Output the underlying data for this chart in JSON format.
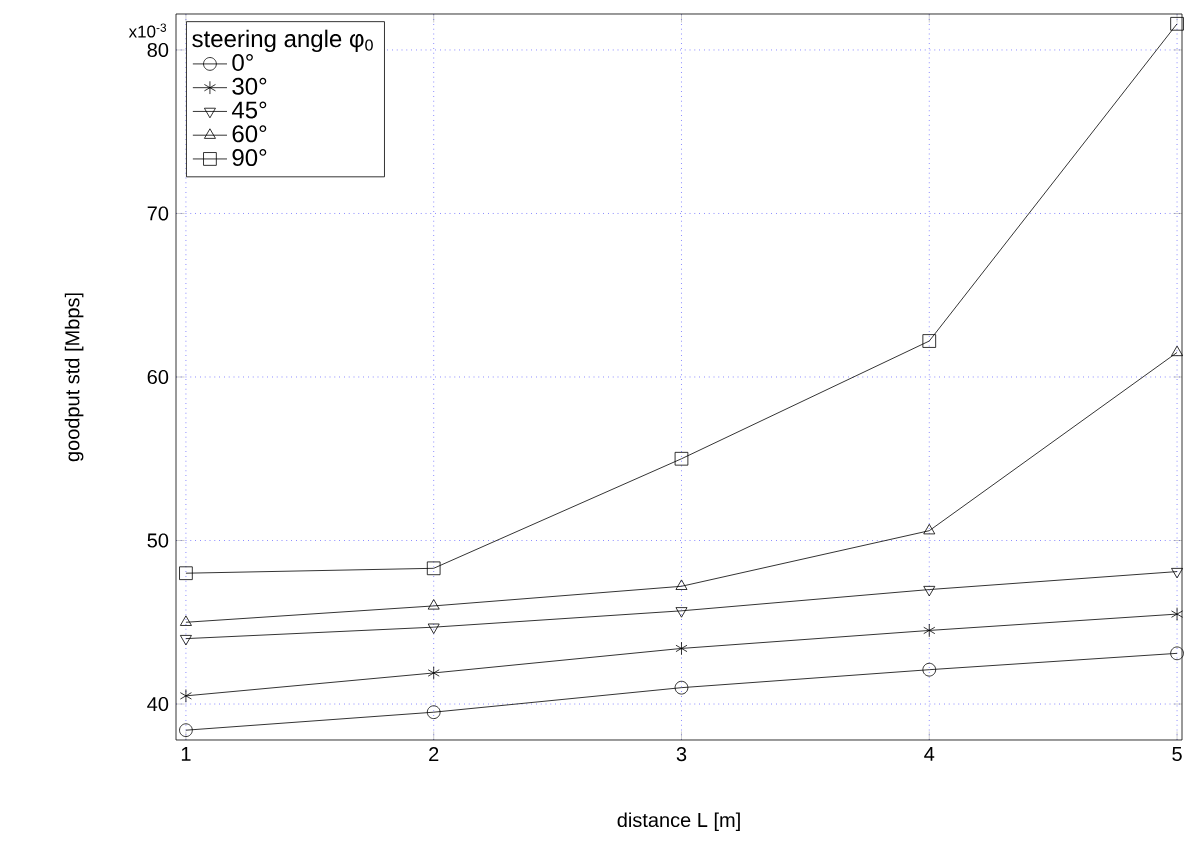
{
  "chart_data": {
    "type": "line",
    "xlabel": "distance L [m]",
    "ylabel": "goodput std [Mbps]",
    "legend_title": "steering angle φ$_{0}$",
    "annotations": [
      "x10$^{-3}$"
    ],
    "x": [
      1,
      2,
      3,
      4,
      5
    ],
    "series": [
      {
        "name": "0°",
        "color": "#000000",
        "marker": "circle",
        "values": [
          38.4,
          39.5,
          41.0,
          42.1,
          43.1
        ]
      },
      {
        "name": "30°",
        "color": "#000000",
        "marker": "cross",
        "values": [
          40.5,
          41.9,
          43.4,
          44.5,
          45.5
        ]
      },
      {
        "name": "45°",
        "color": "#000000",
        "marker": "triangle down",
        "values": [
          44.0,
          44.7,
          45.7,
          47.0,
          48.1
        ]
      },
      {
        "name": "60°",
        "color": "#000000",
        "marker": "triangle",
        "values": [
          45.0,
          46.0,
          47.2,
          50.6,
          61.5
        ]
      },
      {
        "name": "90°",
        "color": "#000000",
        "marker": "square",
        "values": [
          48.0,
          48.3,
          55.0,
          62.2,
          81.6
        ]
      }
    ],
    "xlim": [
      0.96,
      5.02
    ],
    "ylim": [
      37.8,
      82.2
    ],
    "xticks": [
      1,
      2,
      3,
      4,
      5
    ],
    "yticks": [
      40,
      50,
      60,
      70,
      80
    ],
    "grid": true,
    "legend": "top left",
    "line_style": "solid"
  }
}
